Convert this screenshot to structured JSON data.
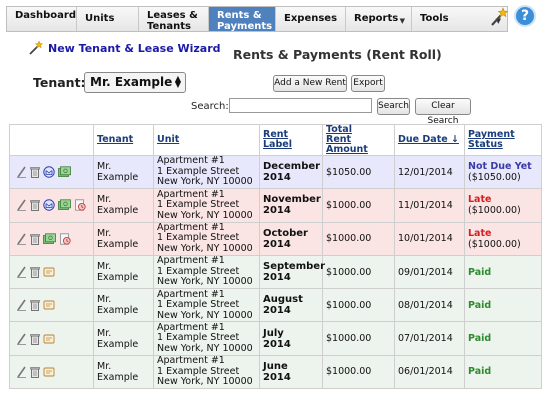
{
  "nav": {
    "items": [
      {
        "label": "Dashboard",
        "active": false,
        "dropdown": false
      },
      {
        "label": "Units",
        "active": false,
        "dropdown": false
      },
      {
        "label": "Leases &\nTenants",
        "active": false,
        "dropdown": false
      },
      {
        "label": "Rents &\nPayments",
        "active": true,
        "dropdown": false
      },
      {
        "label": "Expenses",
        "active": false,
        "dropdown": false
      },
      {
        "label": "Reports",
        "active": false,
        "dropdown": true
      },
      {
        "label": "Tools",
        "active": false,
        "dropdown": true
      }
    ],
    "help_label": "?"
  },
  "wizard_link": "New Tenant & Lease Wizard",
  "page_title": "Rents & Payments (Rent Roll)",
  "tenant_label": "Tenant:",
  "tenant_selected": "Mr. Example",
  "buttons": {
    "add_rent": "Add a New Rent",
    "export": "Export",
    "search": "Search",
    "clear_search": "Clear Search"
  },
  "search": {
    "label": "Search:",
    "value": ""
  },
  "table": {
    "headers": [
      "Tenant",
      "Unit",
      "Rent Label",
      "Total\nRent Amount",
      "Due Date ↓",
      "Payment\nStatus"
    ],
    "rows": [
      {
        "state": "due",
        "tenant": "Mr. Example",
        "unit": "Apartment #1\n1 Example Street\nNew York, NY 10000",
        "label": "December\n2014",
        "amount": "$1050.00",
        "due": "12/01/2014",
        "status": "Not Due Yet",
        "status_amount": "($1050.00)"
      },
      {
        "state": "late",
        "tenant": "Mr. Example",
        "unit": "Apartment #1\n1 Example Street\nNew York, NY 10000",
        "label": "November\n2014",
        "amount": "$1000.00",
        "due": "11/01/2014",
        "status": "Late",
        "status_amount": "($1000.00)"
      },
      {
        "state": "late",
        "tenant": "Mr. Example",
        "unit": "Apartment #1\n1 Example Street\nNew York, NY 10000",
        "label": "October\n2014",
        "amount": "$1000.00",
        "due": "10/01/2014",
        "status": "Late",
        "status_amount": "($1000.00)"
      },
      {
        "state": "paid",
        "tenant": "Mr. Example",
        "unit": "Apartment #1\n1 Example Street\nNew York, NY 10000",
        "label": "September\n2014",
        "amount": "$1000.00",
        "due": "09/01/2014",
        "status": "Paid",
        "status_amount": ""
      },
      {
        "state": "paid",
        "tenant": "Mr. Example",
        "unit": "Apartment #1\n1 Example Street\nNew York, NY 10000",
        "label": "August\n2014",
        "amount": "$1000.00",
        "due": "08/01/2014",
        "status": "Paid",
        "status_amount": ""
      },
      {
        "state": "paid",
        "tenant": "Mr. Example",
        "unit": "Apartment #1\n1 Example Street\nNew York, NY 10000",
        "label": "July\n2014",
        "amount": "$1000.00",
        "due": "07/01/2014",
        "status": "Paid",
        "status_amount": ""
      },
      {
        "state": "paid",
        "tenant": "Mr. Example",
        "unit": "Apartment #1\n1 Example Street\nNew York, NY 10000",
        "label": "June\n2014",
        "amount": "$1000.00",
        "due": "06/01/2014",
        "status": "Paid",
        "status_amount": ""
      }
    ]
  },
  "icons": {
    "wand": "magic-wand-icon",
    "help": "help-icon",
    "edit": "pencil-icon",
    "delete": "trash-icon",
    "email": "email-icon",
    "pay": "money-icon",
    "late_fee": "late-fee-icon",
    "receipt": "receipt-icon"
  },
  "colors": {
    "nav_active": "#4f81bd",
    "row_due": "#e7e8fb",
    "row_late": "#fbe4e4",
    "row_paid": "#edf3ed",
    "status_late": "#d41f1f",
    "status_paid": "#2e8b2e",
    "status_due": "#3a3aa8"
  }
}
